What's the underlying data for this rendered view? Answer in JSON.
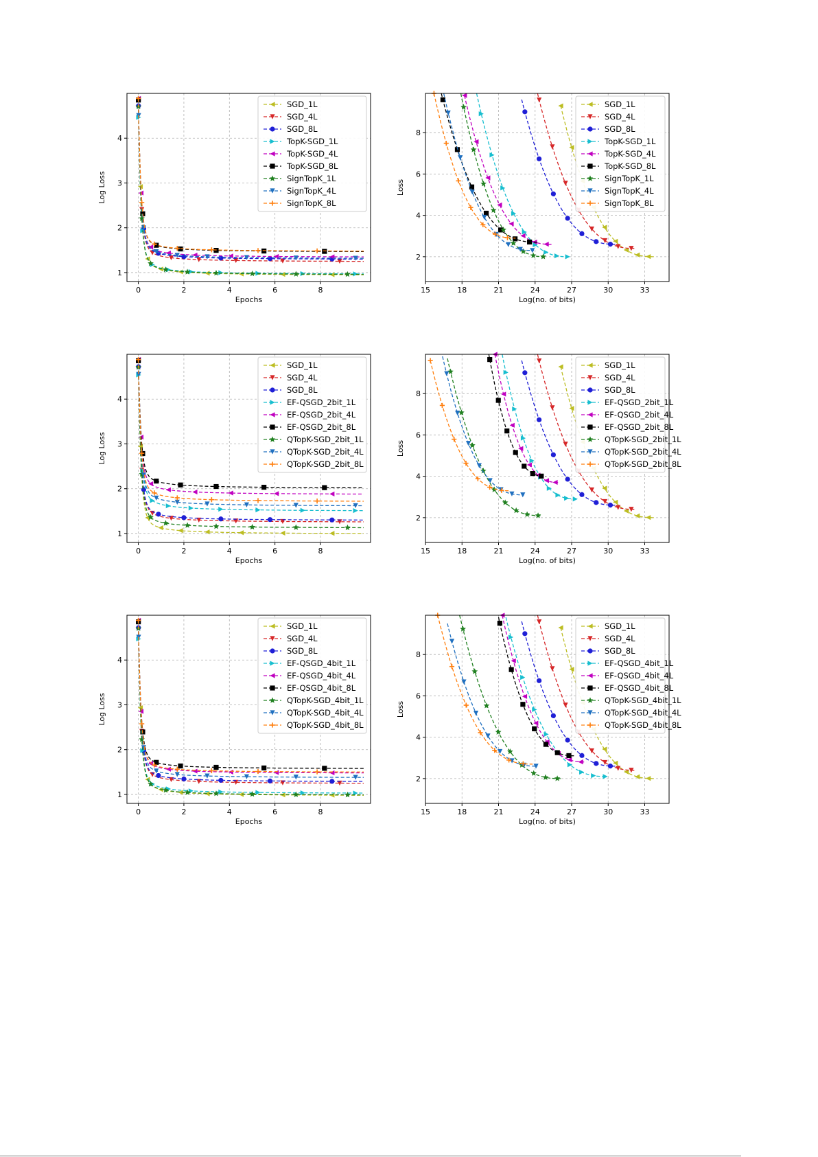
{
  "chart_data": [
    {
      "type": "line",
      "panel": "row1-left",
      "xlabel": "Epochs",
      "ylabel": "Log Loss",
      "xlim": [
        -0.5,
        10.2
      ],
      "ylim": [
        0.8,
        5.0
      ],
      "xticks": [
        0,
        2,
        4,
        6,
        8
      ],
      "yticks": [
        1,
        2,
        3,
        4
      ],
      "legend_position": "top-right",
      "series": [
        {
          "name": "SGD_1L",
          "color": "#bcbd22",
          "marker": "tri-left",
          "shape": "lossA",
          "start": 4.9,
          "end": 0.95
        },
        {
          "name": "SGD_4L",
          "color": "#d62728",
          "marker": "tri-down",
          "shape": "lossA",
          "start": 4.9,
          "end": 1.25
        },
        {
          "name": "SGD_8L",
          "color": "#1f1fd6",
          "marker": "circle",
          "shape": "lossA",
          "start": 4.9,
          "end": 1.3
        },
        {
          "name": "TopK-SGD_1L",
          "color": "#17becf",
          "marker": "tri-right",
          "shape": "lossA",
          "start": 4.9,
          "end": 0.97
        },
        {
          "name": "TopK-SGD_4L",
          "color": "#c000c0",
          "marker": "tri-left",
          "shape": "lossA",
          "start": 4.9,
          "end": 1.35
        },
        {
          "name": "TopK-SGD_8L",
          "color": "#000000",
          "marker": "square",
          "shape": "lossA",
          "start": 4.9,
          "end": 1.47
        },
        {
          "name": "SignTopK_1L",
          "color": "#208020",
          "marker": "star",
          "shape": "lossA",
          "start": 4.9,
          "end": 0.96
        },
        {
          "name": "SignTopK_4L",
          "color": "#2070c0",
          "marker": "tri-down",
          "shape": "lossA",
          "start": 4.9,
          "end": 1.32
        },
        {
          "name": "SignTopK_8L",
          "color": "#ff7f0e",
          "marker": "plus",
          "shape": "lossA",
          "start": 4.9,
          "end": 1.48
        }
      ]
    },
    {
      "type": "line",
      "panel": "row1-right",
      "xlabel": "Log(no. of bits)",
      "ylabel": "Loss",
      "xlim": [
        15,
        35
      ],
      "ylim": [
        0.8,
        9.9
      ],
      "xticks": [
        15,
        18,
        21,
        24,
        27,
        30,
        33
      ],
      "yticks": [
        2,
        4,
        6,
        8
      ],
      "legend_position": "top-right",
      "series": [
        {
          "name": "SGD_1L",
          "color": "#bcbd22",
          "marker": "tri-left",
          "x0": 26.1,
          "x1": 33.8,
          "y0": 9.3,
          "y1": 2.0
        },
        {
          "name": "SGD_4L",
          "color": "#d62728",
          "marker": "tri-down",
          "x0": 24.2,
          "x1": 32.3,
          "y0": 9.9,
          "y1": 2.4
        },
        {
          "name": "SGD_8L",
          "color": "#1f1fd6",
          "marker": "circle",
          "x0": 22.9,
          "x1": 30.7,
          "y0": 9.6,
          "y1": 2.6
        },
        {
          "name": "TopK-SGD_1L",
          "color": "#17becf",
          "marker": "tri-right",
          "x0": 19.2,
          "x1": 26.8,
          "y0": 9.9,
          "y1": 2.0
        },
        {
          "name": "TopK-SGD_4L",
          "color": "#c000c0",
          "marker": "tri-left",
          "x0": 18.2,
          "x1": 25.4,
          "y0": 9.8,
          "y1": 2.6
        },
        {
          "name": "TopK-SGD_8L",
          "color": "#000000",
          "marker": "square",
          "x0": 16.3,
          "x1": 24.2,
          "y0": 9.9,
          "y1": 2.7
        },
        {
          "name": "SignTopK_1L",
          "color": "#208020",
          "marker": "star",
          "x0": 17.9,
          "x1": 24.9,
          "y0": 9.9,
          "y1": 2.0
        },
        {
          "name": "SignTopK_4L",
          "color": "#2070c0",
          "marker": "tri-down",
          "x0": 16.5,
          "x1": 23.9,
          "y0": 9.9,
          "y1": 2.3
        },
        {
          "name": "SignTopK_8L",
          "color": "#ff7f0e",
          "marker": "plus",
          "x0": 15.7,
          "x1": 22.4,
          "y0": 9.9,
          "y1": 2.9
        }
      ]
    },
    {
      "type": "line",
      "panel": "row2-left",
      "xlabel": "Epochs",
      "ylabel": "Log Loss",
      "xlim": [
        -0.5,
        10.2
      ],
      "ylim": [
        0.8,
        5.0
      ],
      "xticks": [
        0,
        2,
        4,
        6,
        8
      ],
      "yticks": [
        1,
        2,
        3,
        4
      ],
      "legend_position": "top-right",
      "series": [
        {
          "name": "SGD_1L",
          "color": "#bcbd22",
          "marker": "tri-left",
          "shape": "lossA",
          "start": 4.9,
          "end": 1.0
        },
        {
          "name": "SGD_4L",
          "color": "#d62728",
          "marker": "tri-down",
          "shape": "lossA",
          "start": 4.9,
          "end": 1.26
        },
        {
          "name": "SGD_8L",
          "color": "#1f1fd6",
          "marker": "circle",
          "shape": "lossA",
          "start": 4.9,
          "end": 1.3
        },
        {
          "name": "EF-QSGD_2bit_1L",
          "color": "#17becf",
          "marker": "tri-right",
          "shape": "lossB",
          "start": 4.9,
          "end": 1.51
        },
        {
          "name": "EF-QSGD_2bit_4L",
          "color": "#c000c0",
          "marker": "tri-left",
          "shape": "lossB",
          "start": 4.9,
          "end": 1.88
        },
        {
          "name": "EF-QSGD_2bit_8L",
          "color": "#000000",
          "marker": "square",
          "shape": "lossB",
          "start": 4.9,
          "end": 2.02
        },
        {
          "name": "QTopK-SGD_2bit_1L",
          "color": "#208020",
          "marker": "star",
          "shape": "lossA",
          "start": 4.9,
          "end": 1.13
        },
        {
          "name": "QTopK-SGD_2bit_4L",
          "color": "#2070c0",
          "marker": "tri-down",
          "shape": "lossB",
          "start": 4.9,
          "end": 1.62
        },
        {
          "name": "QTopK-SGD_2bit_8L",
          "color": "#ff7f0e",
          "marker": "plus",
          "shape": "lossB",
          "start": 4.9,
          "end": 1.72
        }
      ]
    },
    {
      "type": "line",
      "panel": "row2-right",
      "xlabel": "Log(no. of bits)",
      "ylabel": "Loss",
      "xlim": [
        15,
        35
      ],
      "ylim": [
        0.8,
        9.9
      ],
      "xticks": [
        15,
        18,
        21,
        24,
        27,
        30,
        33
      ],
      "yticks": [
        2,
        4,
        6,
        8
      ],
      "legend_position": "top-right",
      "series": [
        {
          "name": "SGD_1L",
          "color": "#bcbd22",
          "marker": "tri-left",
          "x0": 26.1,
          "x1": 33.8,
          "y0": 9.3,
          "y1": 2.0
        },
        {
          "name": "SGD_4L",
          "color": "#d62728",
          "marker": "tri-down",
          "x0": 24.2,
          "x1": 32.3,
          "y0": 9.9,
          "y1": 2.4
        },
        {
          "name": "SGD_8L",
          "color": "#1f1fd6",
          "marker": "circle",
          "x0": 22.9,
          "x1": 30.7,
          "y0": 9.6,
          "y1": 2.6
        },
        {
          "name": "EF-QSGD_2bit_1L",
          "color": "#17becf",
          "marker": "tri-right",
          "x0": 21.3,
          "x1": 27.4,
          "y0": 9.9,
          "y1": 2.9
        },
        {
          "name": "EF-QSGD_2bit_4L",
          "color": "#c000c0",
          "marker": "tri-left",
          "x0": 20.7,
          "x1": 26.0,
          "y0": 9.9,
          "y1": 3.7
        },
        {
          "name": "EF-QSGD_2bit_8L",
          "color": "#000000",
          "marker": "square",
          "x0": 20.2,
          "x1": 24.9,
          "y0": 9.9,
          "y1": 4.0
        },
        {
          "name": "QTopK-SGD_2bit_1L",
          "color": "#208020",
          "marker": "star",
          "x0": 16.8,
          "x1": 24.5,
          "y0": 9.7,
          "y1": 2.1
        },
        {
          "name": "QTopK-SGD_2bit_4L",
          "color": "#2070c0",
          "marker": "tri-down",
          "x0": 16.4,
          "x1": 23.1,
          "y0": 9.8,
          "y1": 3.1
        },
        {
          "name": "QTopK-SGD_2bit_8L",
          "color": "#ff7f0e",
          "marker": "plus",
          "x0": 15.4,
          "x1": 21.9,
          "y0": 9.6,
          "y1": 3.3
        }
      ]
    },
    {
      "type": "line",
      "panel": "row3-left",
      "xlabel": "Epochs",
      "ylabel": "Log Loss",
      "xlim": [
        -0.5,
        10.2
      ],
      "ylim": [
        0.8,
        5.0
      ],
      "xticks": [
        0,
        2,
        4,
        6,
        8
      ],
      "yticks": [
        1,
        2,
        3,
        4
      ],
      "legend_position": "top-right",
      "series": [
        {
          "name": "SGD_1L",
          "color": "#bcbd22",
          "marker": "tri-left",
          "shape": "lossA",
          "start": 4.9,
          "end": 0.98
        },
        {
          "name": "SGD_4L",
          "color": "#d62728",
          "marker": "tri-down",
          "shape": "lossA",
          "start": 4.9,
          "end": 1.25
        },
        {
          "name": "SGD_8L",
          "color": "#1f1fd6",
          "marker": "circle",
          "shape": "lossA",
          "start": 4.9,
          "end": 1.29
        },
        {
          "name": "EF-QSGD_4bit_1L",
          "color": "#17becf",
          "marker": "tri-right",
          "shape": "lossA",
          "start": 4.9,
          "end": 1.03
        },
        {
          "name": "EF-QSGD_4bit_4L",
          "color": "#c000c0",
          "marker": "tri-left",
          "shape": "lossA",
          "start": 4.9,
          "end": 1.48
        },
        {
          "name": "EF-QSGD_4bit_8L",
          "color": "#000000",
          "marker": "square",
          "shape": "lossA",
          "start": 4.9,
          "end": 1.58
        },
        {
          "name": "QTopK-SGD_4bit_1L",
          "color": "#208020",
          "marker": "star",
          "shape": "lossA",
          "start": 4.9,
          "end": 0.99
        },
        {
          "name": "QTopK-SGD_4bit_4L",
          "color": "#2070c0",
          "marker": "tri-down",
          "shape": "lossA",
          "start": 4.9,
          "end": 1.38
        },
        {
          "name": "QTopK-SGD_4bit_8L",
          "color": "#ff7f0e",
          "marker": "plus",
          "shape": "lossA",
          "start": 4.9,
          "end": 1.5
        }
      ]
    },
    {
      "type": "line",
      "panel": "row3-right",
      "xlabel": "Log(no. of bits)",
      "ylabel": "Loss",
      "xlim": [
        15,
        35
      ],
      "ylim": [
        0.8,
        9.9
      ],
      "xticks": [
        15,
        18,
        21,
        24,
        27,
        30,
        33
      ],
      "yticks": [
        2,
        4,
        6,
        8
      ],
      "legend_position": "top-right",
      "series": [
        {
          "name": "SGD_1L",
          "color": "#bcbd22",
          "marker": "tri-left",
          "x0": 26.1,
          "x1": 33.8,
          "y0": 9.3,
          "y1": 2.0
        },
        {
          "name": "SGD_4L",
          "color": "#d62728",
          "marker": "tri-down",
          "x0": 24.2,
          "x1": 32.3,
          "y0": 9.9,
          "y1": 2.4
        },
        {
          "name": "SGD_8L",
          "color": "#1f1fd6",
          "marker": "circle",
          "x0": 22.9,
          "x1": 30.7,
          "y0": 9.6,
          "y1": 2.6
        },
        {
          "name": "EF-QSGD_4bit_1L",
          "color": "#17becf",
          "marker": "tri-right",
          "x0": 21.6,
          "x1": 29.9,
          "y0": 9.8,
          "y1": 2.1
        },
        {
          "name": "EF-QSGD_4bit_4L",
          "color": "#c000c0",
          "marker": "tri-left",
          "x0": 21.3,
          "x1": 28.2,
          "y0": 9.9,
          "y1": 2.8
        },
        {
          "name": "EF-QSGD_4bit_8L",
          "color": "#000000",
          "marker": "square",
          "x0": 21.0,
          "x1": 27.3,
          "y0": 9.8,
          "y1": 3.1
        },
        {
          "name": "QTopK-SGD_4bit_1L",
          "color": "#208020",
          "marker": "star",
          "x0": 17.8,
          "x1": 26.1,
          "y0": 9.9,
          "y1": 2.0
        },
        {
          "name": "QTopK-SGD_4bit_4L",
          "color": "#2070c0",
          "marker": "tri-down",
          "x0": 16.8,
          "x1": 24.2,
          "y0": 9.5,
          "y1": 2.6
        },
        {
          "name": "QTopK-SGD_4bit_8L",
          "color": "#ff7f0e",
          "marker": "plus",
          "x0": 16.0,
          "x1": 23.8,
          "y0": 9.9,
          "y1": 2.7
        }
      ]
    }
  ]
}
